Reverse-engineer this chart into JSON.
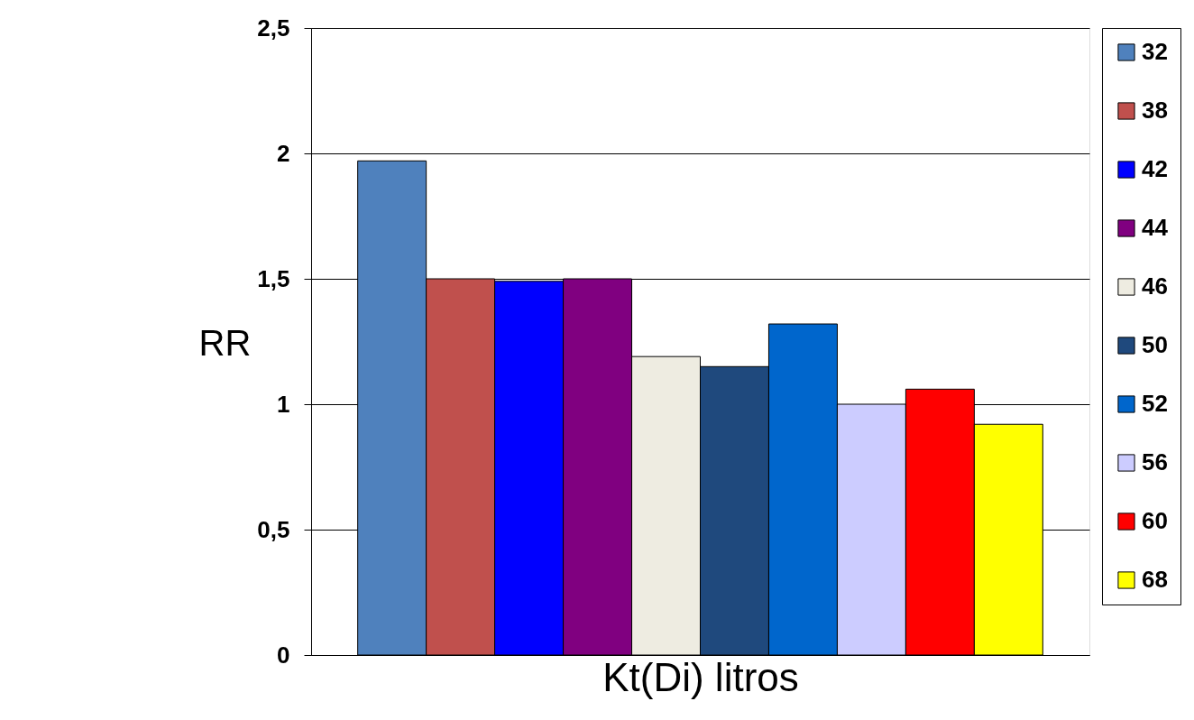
{
  "chart_data": {
    "type": "bar",
    "xlabel": "Kt(Di) litros",
    "ylabel": "RR",
    "categories": [
      null
    ],
    "series": [
      {
        "name": "32",
        "color": "#4f81bd",
        "values": [
          1.97
        ]
      },
      {
        "name": "38",
        "color": "#c0504d",
        "values": [
          1.5
        ]
      },
      {
        "name": "42",
        "color": "#0000ff",
        "values": [
          1.49
        ]
      },
      {
        "name": "44",
        "color": "#800080",
        "values": [
          1.5
        ]
      },
      {
        "name": "46",
        "color": "#eeece1",
        "values": [
          1.19
        ]
      },
      {
        "name": "50",
        "color": "#1f497d",
        "values": [
          1.15
        ]
      },
      {
        "name": "52",
        "color": "#0066cc",
        "values": [
          1.32
        ]
      },
      {
        "name": "56",
        "color": "#ccccff",
        "values": [
          1.0
        ]
      },
      {
        "name": "60",
        "color": "#ff0000",
        "values": [
          1.06
        ]
      },
      {
        "name": "68",
        "color": "#ffff00",
        "values": [
          0.92
        ]
      }
    ],
    "ylim": [
      0,
      2.5
    ],
    "yticks": [
      0,
      {
        "value": 0.5,
        "label": "0,5"
      },
      1,
      {
        "value": 1.5,
        "label": "1,5"
      },
      2,
      {
        "value": 2.5,
        "label": "2,5"
      }
    ],
    "grid": "y",
    "legend": "right"
  }
}
